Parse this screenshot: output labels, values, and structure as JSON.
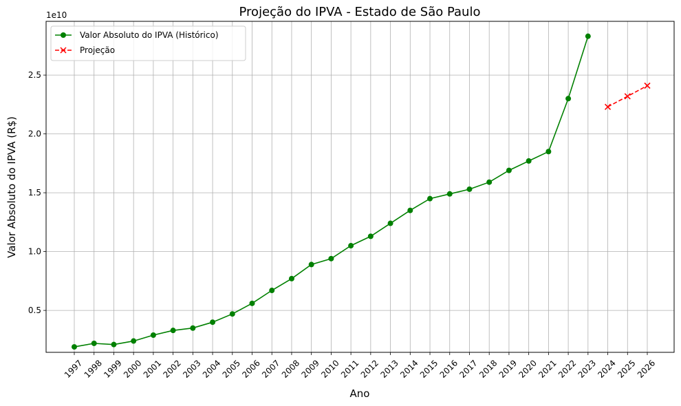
{
  "chart_data": {
    "type": "line",
    "title": "Projeção do IPVA - Estado de São Paulo",
    "xlabel": "Ano",
    "ylabel": "Valor Absoluto do IPVA (R$)",
    "y_offset_label": "1e10",
    "x": [
      1997,
      1998,
      1999,
      2000,
      2001,
      2002,
      2003,
      2004,
      2005,
      2006,
      2007,
      2008,
      2009,
      2010,
      2011,
      2012,
      2013,
      2014,
      2015,
      2016,
      2017,
      2018,
      2019,
      2020,
      2021,
      2022,
      2023,
      2024,
      2025,
      2026
    ],
    "x_tick_labels": [
      "1997",
      "1998",
      "1999",
      "2000",
      "2001",
      "2002",
      "2003",
      "2004",
      "2005",
      "2006",
      "2007",
      "2008",
      "2009",
      "2010",
      "2011",
      "2012",
      "2013",
      "2014",
      "2015",
      "2016",
      "2017",
      "2018",
      "2019",
      "2020",
      "2021",
      "2022",
      "2023",
      "2024",
      "2025",
      "2026"
    ],
    "y_ticks": [
      0.5,
      1.0,
      1.5,
      2.0,
      2.5
    ],
    "y_tick_labels": [
      "0.5",
      "1.0",
      "1.5",
      "2.0",
      "2.5"
    ],
    "ylim": [
      0.1438,
      2.9568
    ],
    "y_units": "1e10",
    "grid": true,
    "legend_position": "upper-left",
    "series": [
      {
        "name": "Valor Absoluto do IPVA (Histórico)",
        "color": "#008000",
        "line_style": "solid",
        "marker": "circle",
        "x": [
          1997,
          1998,
          1999,
          2000,
          2001,
          2002,
          2003,
          2004,
          2005,
          2006,
          2007,
          2008,
          2009,
          2010,
          2011,
          2012,
          2013,
          2014,
          2015,
          2016,
          2017,
          2018,
          2019,
          2020,
          2021,
          2022,
          2023
        ],
        "values": [
          0.19,
          0.22,
          0.21,
          0.24,
          0.29,
          0.33,
          0.35,
          0.4,
          0.47,
          0.56,
          0.67,
          0.77,
          0.89,
          0.94,
          1.05,
          1.13,
          1.24,
          1.35,
          1.45,
          1.49,
          1.53,
          1.59,
          1.69,
          1.77,
          1.85,
          2.3,
          2.83
        ]
      },
      {
        "name": "Projeção",
        "color": "#ff0000",
        "line_style": "dashed",
        "marker": "x",
        "x": [
          2024,
          2025,
          2026
        ],
        "values": [
          2.23,
          2.32,
          2.41
        ]
      }
    ]
  }
}
